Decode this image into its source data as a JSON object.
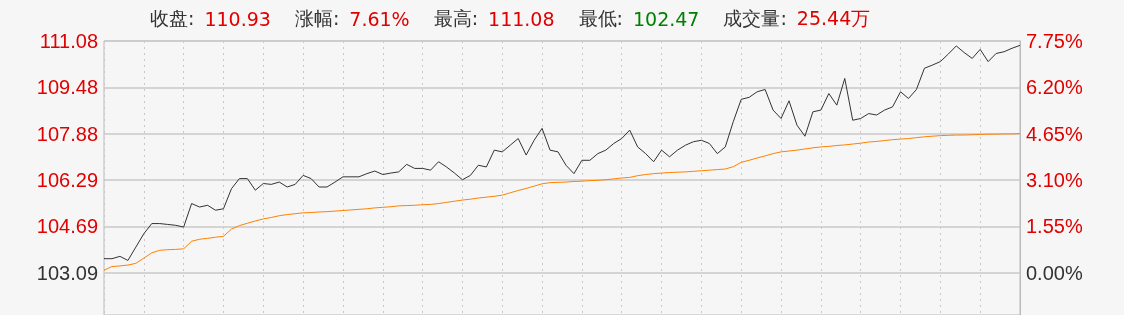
{
  "chart_data": {
    "type": "line",
    "annotations": [
      "收盘:",
      "110.93",
      "涨幅:",
      "7.61%",
      "最高:",
      "111.08",
      "最低:",
      "102.47",
      "成交量:",
      "25.44万"
    ],
    "categories": [
      null,
      null,
      null,
      null,
      null,
      null,
      null,
      null,
      null,
      null,
      null,
      null,
      null,
      null,
      null,
      null,
      null,
      null,
      null,
      null,
      null,
      null,
      null,
      null,
      null,
      null,
      null,
      null,
      null,
      null,
      null,
      null,
      null,
      null,
      null,
      null,
      null,
      null,
      null,
      null,
      null,
      null,
      null,
      null,
      null,
      null,
      null,
      null,
      null,
      null,
      null,
      null,
      null,
      null,
      null,
      null,
      null,
      null,
      null,
      null,
      null,
      null,
      null,
      null,
      null,
      null,
      null,
      null,
      null,
      null,
      null,
      null,
      null,
      null,
      null,
      null,
      null,
      null,
      null,
      null,
      null,
      null,
      null,
      null,
      null,
      null,
      null,
      null,
      null,
      null,
      null,
      null,
      null,
      null,
      null,
      null,
      null,
      null,
      null,
      null,
      null,
      null,
      null,
      null,
      null,
      null,
      null,
      null,
      null,
      null,
      null,
      null,
      null,
      null,
      null,
      null
    ],
    "ylim": [
      101.64,
      111.08
    ],
    "yticks": [
      103.09,
      104.69,
      106.29,
      107.88,
      109.48,
      111.08
    ],
    "y2lim": [
      -1.41,
      7.75
    ],
    "y2ticks": [
      {
        "value": 0,
        "label": "0.00%"
      },
      {
        "value": 1.55,
        "label": "1.55%"
      },
      {
        "value": 3.1,
        "label": "3.10%"
      },
      {
        "value": 4.65,
        "label": "4.65%"
      },
      {
        "value": 6.2,
        "label": "6.20%"
      },
      {
        "value": 7.75,
        "label": "7.75%"
      }
    ],
    "grid": true,
    "line_style": "solid",
    "tick_labels": "y",
    "series": [
      {
        "color": "#333333",
        "values": [
          103.58,
          103.58,
          103.66,
          103.52,
          103.98,
          104.44,
          104.79,
          104.79,
          104.76,
          104.73,
          104.67,
          105.48,
          105.36,
          105.42,
          105.25,
          105.3,
          105.99,
          106.34,
          106.34,
          105.94,
          106.17,
          106.14,
          106.22,
          106.05,
          106.14,
          106.45,
          106.34,
          106.05,
          106.05,
          106.22,
          106.4,
          106.4,
          106.4,
          106.51,
          106.6,
          106.48,
          106.53,
          106.57,
          106.83,
          106.69,
          106.69,
          106.63,
          106.92,
          106.74,
          106.53,
          106.3,
          106.45,
          106.8,
          106.74,
          107.32,
          107.26,
          107.49,
          107.72,
          107.15,
          107.66,
          108.07,
          107.32,
          107.26,
          106.8,
          106.51,
          106.97,
          106.97,
          107.2,
          107.32,
          107.55,
          107.72,
          108.01,
          107.43,
          107.2,
          106.92,
          107.32,
          107.09,
          107.32,
          107.49,
          107.61,
          107.66,
          107.55,
          107.2,
          107.43,
          108.3,
          109.07,
          109.14,
          109.33,
          109.41,
          108.7,
          108.41,
          109.02,
          108.18,
          107.8,
          108.64,
          108.7,
          109.27,
          108.87,
          109.79,
          108.35,
          108.41,
          108.58,
          108.53,
          108.7,
          108.81,
          109.33,
          109.1,
          109.41,
          110.14,
          110.25,
          110.37,
          110.63,
          110.91,
          110.68,
          110.48,
          110.79,
          110.37,
          110.65,
          110.71,
          110.83,
          110.93
        ]
      },
      {
        "color": "#ff8000",
        "values": [
          103.18,
          103.31,
          103.33,
          103.36,
          103.42,
          103.6,
          103.78,
          103.87,
          103.89,
          103.9,
          103.92,
          104.18,
          104.25,
          104.28,
          104.32,
          104.35,
          104.6,
          104.72,
          104.8,
          104.88,
          104.95,
          105.0,
          105.06,
          105.1,
          105.13,
          105.16,
          105.17,
          105.19,
          105.2,
          105.22,
          105.24,
          105.26,
          105.28,
          105.3,
          105.33,
          105.35,
          105.37,
          105.4,
          105.41,
          105.42,
          105.44,
          105.45,
          105.48,
          105.52,
          105.56,
          105.6,
          105.63,
          105.67,
          105.7,
          105.73,
          105.77,
          105.85,
          105.93,
          106.0,
          106.08,
          106.16,
          106.2,
          106.21,
          106.22,
          106.24,
          106.25,
          106.27,
          106.28,
          106.3,
          106.33,
          106.36,
          106.38,
          106.44,
          106.48,
          106.51,
          106.53,
          106.55,
          106.56,
          106.57,
          106.59,
          106.61,
          106.63,
          106.65,
          106.67,
          106.75,
          106.9,
          106.97,
          107.05,
          107.12,
          107.2,
          107.26,
          107.29,
          107.32,
          107.36,
          107.4,
          107.43,
          107.45,
          107.48,
          107.5,
          107.53,
          107.56,
          107.6,
          107.62,
          107.65,
          107.68,
          107.7,
          107.72,
          107.75,
          107.78,
          107.8,
          107.82,
          107.83,
          107.84,
          107.84,
          107.85,
          107.86,
          107.87,
          107.87,
          107.88,
          107.88,
          107.89
        ]
      }
    ]
  }
}
